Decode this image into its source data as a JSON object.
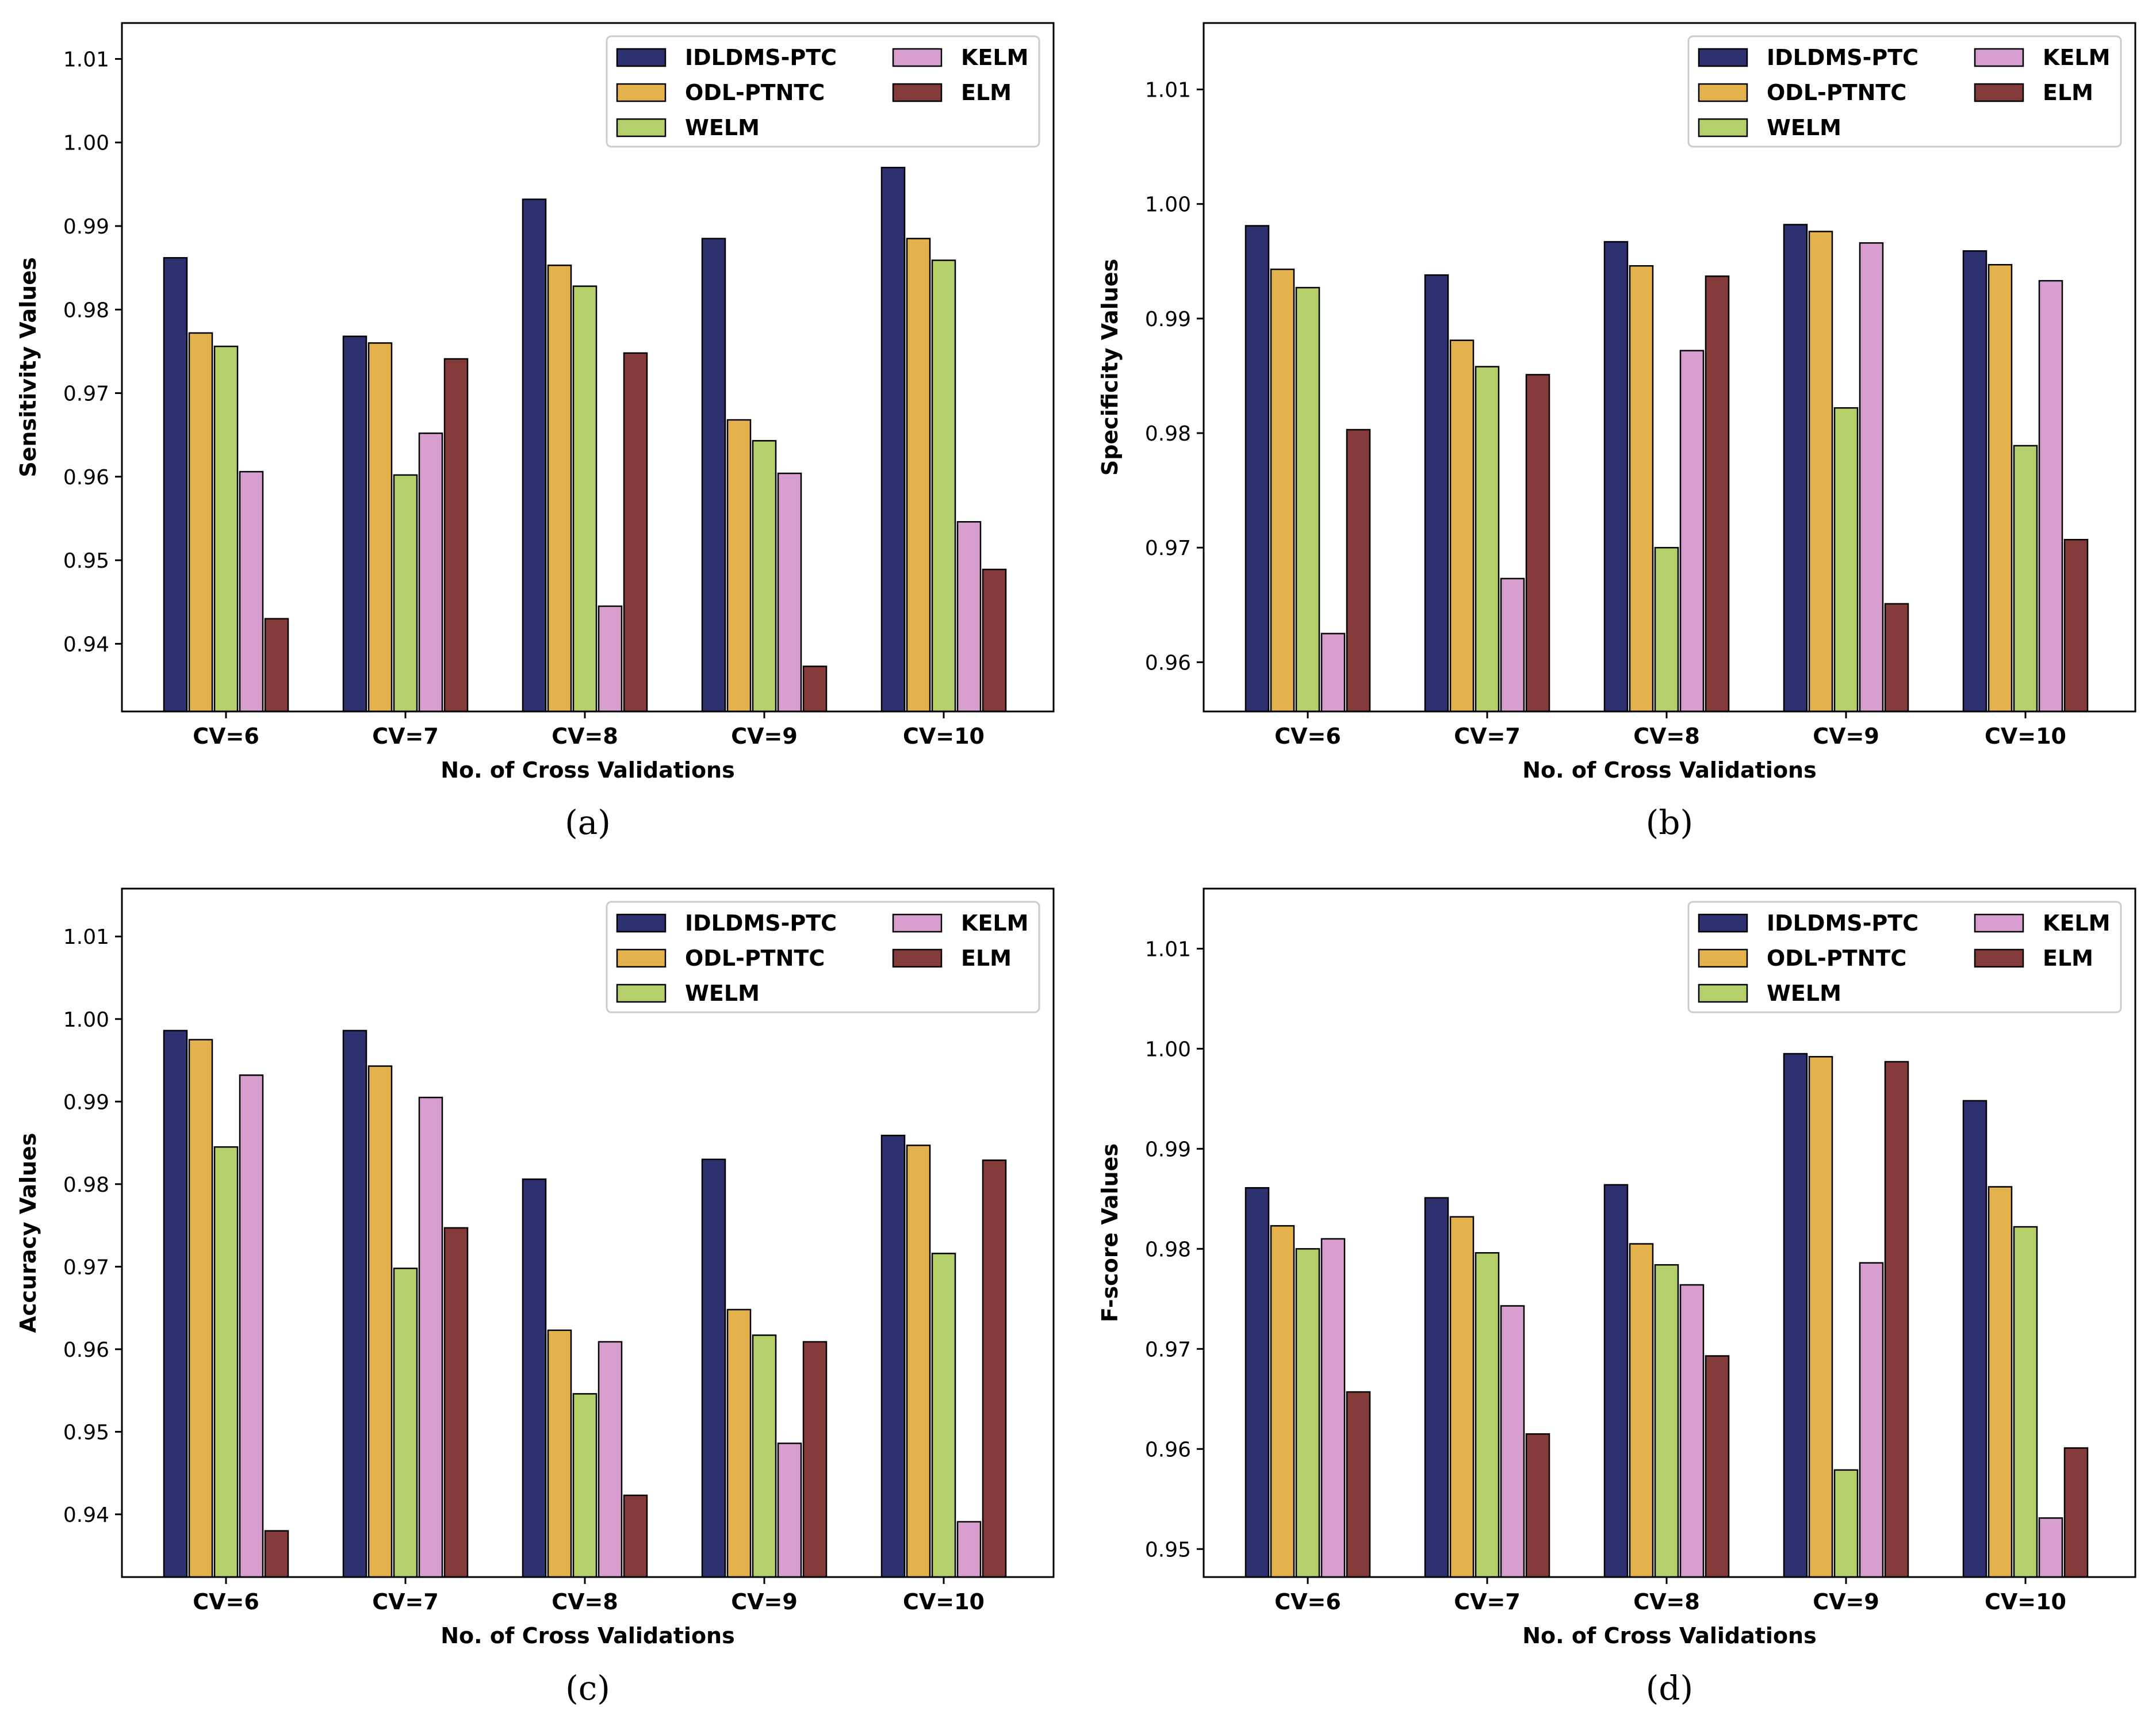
{
  "figure_title": "",
  "colors": {
    "IDLDMS-PTC": "#2d3170",
    "ODL-PTNTC": "#e3b24c",
    "WELM": "#b5cf6b",
    "KELM": "#d99ed0",
    "ELM": "#843a38"
  },
  "chart_data": [
    {
      "type": "bar",
      "panel_caption": "(a)",
      "xlabel": "No. of Cross Validations",
      "ylabel": "Sensitivity Values",
      "categories": [
        "CV=6",
        "CV=7",
        "CV=8",
        "CV=9",
        "CV=10"
      ],
      "ylim": [
        0.9319,
        1.0143
      ],
      "yticks": [
        "0.94",
        "0.95",
        "0.96",
        "0.97",
        "0.98",
        "0.99",
        "1.00",
        "1.01"
      ],
      "legend_position": "top-right",
      "series": [
        {
          "name": "IDLDMS-PTC",
          "values": [
            0.9862,
            0.9768,
            0.9932,
            0.9885,
            0.997
          ]
        },
        {
          "name": "ODL-PTNTC",
          "values": [
            0.9772,
            0.976,
            0.9853,
            0.9668,
            0.9885
          ]
        },
        {
          "name": "WELM",
          "values": [
            0.9756,
            0.9602,
            0.9828,
            0.9643,
            0.9859
          ]
        },
        {
          "name": "KELM",
          "values": [
            0.9606,
            0.9652,
            0.9445,
            0.9604,
            0.9546
          ]
        },
        {
          "name": "ELM",
          "values": [
            0.943,
            0.9741,
            0.9748,
            0.9373,
            0.9489
          ]
        }
      ]
    },
    {
      "type": "bar",
      "panel_caption": "(b)",
      "xlabel": "No. of Cross Validations",
      "ylabel": "Specificity Values",
      "categories": [
        "CV=6",
        "CV=7",
        "CV=8",
        "CV=9",
        "CV=10"
      ],
      "ylim": [
        0.9557,
        1.0158
      ],
      "yticks": [
        "0.96",
        "0.97",
        "0.98",
        "0.99",
        "1.00",
        "1.01"
      ],
      "legend_position": "top-right",
      "series": [
        {
          "name": "IDLDMS-PTC",
          "values": [
            0.9981,
            0.9938,
            0.9967,
            0.9982,
            0.9959
          ]
        },
        {
          "name": "ODL-PTNTC",
          "values": [
            0.9943,
            0.9881,
            0.9946,
            0.9976,
            0.9947
          ]
        },
        {
          "name": "WELM",
          "values": [
            0.9927,
            0.9858,
            0.97,
            0.9822,
            0.9789
          ]
        },
        {
          "name": "KELM",
          "values": [
            0.9625,
            0.9673,
            0.9872,
            0.9966,
            0.9933
          ]
        },
        {
          "name": "ELM",
          "values": [
            0.9803,
            0.9851,
            0.9937,
            0.9651,
            0.9707
          ]
        }
      ]
    },
    {
      "type": "bar",
      "panel_caption": "(c)",
      "xlabel": "No. of Cross Validations",
      "ylabel": "Accuracy Values",
      "categories": [
        "CV=6",
        "CV=7",
        "CV=8",
        "CV=9",
        "CV=10"
      ],
      "ylim": [
        0.9324,
        1.0158
      ],
      "yticks": [
        "0.94",
        "0.95",
        "0.96",
        "0.97",
        "0.98",
        "0.99",
        "1.00",
        "1.01"
      ],
      "legend_position": "top-right",
      "series": [
        {
          "name": "IDLDMS-PTC",
          "values": [
            0.9986,
            0.9986,
            0.9806,
            0.983,
            0.9859
          ]
        },
        {
          "name": "ODL-PTNTC",
          "values": [
            0.9975,
            0.9943,
            0.9623,
            0.9648,
            0.9847
          ]
        },
        {
          "name": "WELM",
          "values": [
            0.9845,
            0.9698,
            0.9546,
            0.9617,
            0.9716
          ]
        },
        {
          "name": "KELM",
          "values": [
            0.9932,
            0.9905,
            0.9609,
            0.9486,
            0.9391
          ]
        },
        {
          "name": "ELM",
          "values": [
            0.938,
            0.9747,
            0.9423,
            0.9609,
            0.9829
          ]
        }
      ]
    },
    {
      "type": "bar",
      "panel_caption": "(d)",
      "xlabel": "No. of Cross Validations",
      "ylabel": "F-score Values",
      "categories": [
        "CV=6",
        "CV=7",
        "CV=8",
        "CV=9",
        "CV=10"
      ],
      "ylim": [
        0.9472,
        1.016
      ],
      "yticks": [
        "0.95",
        "0.96",
        "0.97",
        "0.98",
        "0.99",
        "1.00",
        "1.01"
      ],
      "legend_position": "top-right",
      "series": [
        {
          "name": "IDLDMS-PTC",
          "values": [
            0.9861,
            0.9851,
            0.9864,
            0.9995,
            0.9948
          ]
        },
        {
          "name": "ODL-PTNTC",
          "values": [
            0.9823,
            0.9832,
            0.9805,
            0.9992,
            0.9862
          ]
        },
        {
          "name": "WELM",
          "values": [
            0.98,
            0.9796,
            0.9784,
            0.9579,
            0.9822
          ]
        },
        {
          "name": "KELM",
          "values": [
            0.981,
            0.9743,
            0.9764,
            0.9786,
            0.9531
          ]
        },
        {
          "name": "ELM",
          "values": [
            0.9657,
            0.9615,
            0.9693,
            0.9987,
            0.9601
          ]
        }
      ]
    }
  ]
}
